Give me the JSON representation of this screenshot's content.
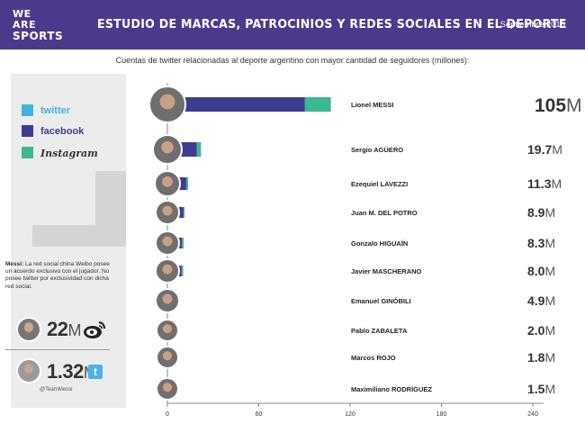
{
  "header": {
    "logo_line1": "WE ARE",
    "logo_line2": "SPORTS",
    "title": "ESTUDIO DE MARCAS, PATROCINIOS Y REDES SOCIALES EN EL DEPORTE",
    "date": "Septiembre 2015"
  },
  "subtitle": "Cuentas de twitter relacionadas al deporte argentino con mayor cantidad de seguidores (millones):",
  "colors": {
    "header_bg": "#4b3a8c",
    "twitter": "#40b2e2",
    "facebook": "#3c3d8f",
    "instagram": "#3cb891"
  },
  "legend": [
    {
      "label": "twitter",
      "color": "#40b2e2"
    },
    {
      "label": "facebook",
      "color": "#3c3d8f"
    },
    {
      "label": "Instagram",
      "color": "#3cb891"
    }
  ],
  "note": {
    "bold": "Messi:",
    "text": " La red social china Weibo posee un acuerdo exclusivo con el jugador. No posee twitter por exclusividad con dicha red social."
  },
  "weibo": {
    "value": "22",
    "unit": "M",
    "icon": "weibo-icon"
  },
  "twitter_handle": {
    "value": "1.32",
    "unit": "M",
    "handle": "@TeamMessi",
    "icon": "twitter-icon"
  },
  "chart_data": {
    "type": "bar",
    "orientation": "horizontal",
    "stacked": true,
    "xlim": [
      0,
      240
    ],
    "xticks": [
      "0",
      "60",
      "120",
      "180",
      "240"
    ],
    "categories": [
      "Lionel MESSI",
      "Sergio AGÜERO",
      "Ezequiel LAVEZZI",
      "Juan M. DEL POTRO",
      "Gonzalo HIGUAÍN",
      "Javier MASCHERANO",
      "Emanuel GINÓBILI",
      "Pablo ZABALETA",
      "Marcos ROJO",
      "Maximiliano RODRÍGUEZ"
    ],
    "series": [
      {
        "name": "twitter",
        "color": "#40b2e2",
        "values": [
          0,
          6.5,
          2.2,
          2.0,
          2.4,
          2.1,
          1.4,
          1.0,
          0.4,
          0.6
        ]
      },
      {
        "name": "facebook",
        "color": "#3c3d8f",
        "values": [
          88,
          10.5,
          7.8,
          6.2,
          4.8,
          4.9,
          3.3,
          0.9,
          1.3,
          0.8
        ]
      },
      {
        "name": "Instagram",
        "color": "#3cb891",
        "values": [
          17,
          2.7,
          1.3,
          0.7,
          1.1,
          1.0,
          0.2,
          0.1,
          0.1,
          0.1
        ]
      }
    ],
    "total_num": [
      "105",
      "19.7",
      "11.3",
      "8.9",
      "8.3",
      "8.0",
      "4.9",
      "2.0",
      "1.8",
      "1.5"
    ],
    "total_unit": "M"
  }
}
